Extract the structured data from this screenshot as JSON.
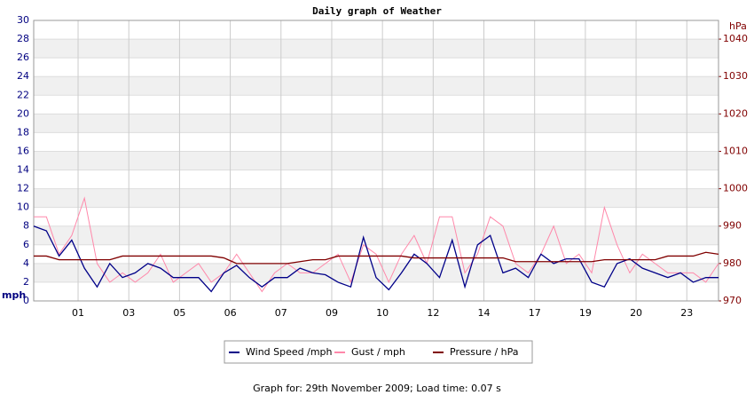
{
  "chart_data": {
    "type": "line",
    "title": "Daily graph of Weather",
    "ylabel": "mph",
    "y2label": "hPa",
    "caption": "Graph for: 29th November 2009; Load time: 0.07 s",
    "x": [
      0,
      0.25,
      0.5,
      0.75,
      1,
      1.25,
      1.5,
      1.75,
      2,
      2.25,
      2.5,
      2.75,
      3,
      3.25,
      3.5,
      3.75,
      4,
      4.25,
      4.5,
      4.75,
      5,
      5.25,
      5.5,
      5.75,
      6,
      6.25,
      6.5,
      6.75,
      7,
      7.25,
      7.5,
      7.75,
      8,
      8.25,
      8.5,
      8.75,
      9,
      9.25,
      9.5,
      9.75,
      10,
      10.25,
      10.5,
      10.75,
      11,
      11.25,
      11.5,
      11.75,
      12,
      12.25,
      12.5,
      12.75,
      13,
      13.25,
      13.5
    ],
    "xlim": [
      0,
      13.5
    ],
    "xticks": [
      {
        "value": 0.875,
        "label": "01"
      },
      {
        "value": 1.875,
        "label": "03"
      },
      {
        "value": 2.875,
        "label": "05"
      },
      {
        "value": 3.875,
        "label": "06"
      },
      {
        "value": 4.875,
        "label": "07"
      },
      {
        "value": 5.875,
        "label": "09"
      },
      {
        "value": 6.875,
        "label": "10"
      },
      {
        "value": 7.875,
        "label": "12"
      },
      {
        "value": 8.875,
        "label": "14"
      },
      {
        "value": 9.875,
        "label": "17"
      },
      {
        "value": 10.875,
        "label": "19"
      },
      {
        "value": 11.875,
        "label": "20"
      },
      {
        "value": 12.875,
        "label": "23"
      }
    ],
    "ylim": [
      0,
      30
    ],
    "yticks": [
      0,
      2,
      4,
      6,
      8,
      10,
      12,
      14,
      16,
      18,
      20,
      22,
      24,
      26,
      28,
      30
    ],
    "y2lim": [
      970,
      1045
    ],
    "y2ticks": [
      970,
      980,
      990,
      1000,
      1010,
      1020,
      1030,
      1040
    ],
    "grid": true,
    "series": [
      {
        "name": "Wind Speed /mph",
        "color": "#000088",
        "values": [
          8,
          7.5,
          4.8,
          6.5,
          3.5,
          1.5,
          4,
          2.5,
          3,
          4,
          3.5,
          2.5,
          2.5,
          2.5,
          1,
          3,
          3.8,
          2.5,
          1.5,
          2.5,
          2.5,
          3.5,
          3,
          2.8,
          2,
          1.5,
          6.8,
          2.5,
          1.2,
          3,
          5,
          4,
          2.5,
          6.5,
          1.5,
          6,
          7,
          3,
          3.5,
          2.5,
          5,
          4,
          4.5,
          4.5,
          2,
          1.5,
          4,
          4.5,
          3.5,
          3,
          2.5,
          3,
          2,
          2.5,
          2.5
        ]
      },
      {
        "name": "Gust / mph",
        "color": "#ff88aa",
        "values": [
          9,
          9,
          5,
          7,
          11,
          4,
          2,
          3,
          2,
          3,
          5,
          2,
          3,
          4,
          2,
          3,
          5,
          3,
          1,
          3,
          4,
          3,
          3,
          4,
          5,
          2,
          6,
          5,
          2,
          5,
          7,
          4,
          9,
          9,
          3,
          5,
          9,
          8,
          4,
          3,
          5,
          8,
          4,
          5,
          3,
          10,
          6,
          3,
          5,
          4,
          3,
          3,
          3,
          2,
          4
        ]
      },
      {
        "name": "Pressure / hPa",
        "color": "#800000",
        "axis": "y2",
        "values": [
          982,
          982,
          981,
          981,
          981,
          981,
          981,
          982,
          982,
          982,
          982,
          982,
          982,
          982,
          982,
          981.5,
          980,
          980,
          980,
          980,
          980,
          980.5,
          981,
          981,
          982,
          982,
          982,
          982,
          982,
          982,
          981.5,
          981.5,
          981.5,
          981.5,
          981.5,
          981.5,
          981.5,
          981.5,
          980.5,
          980.5,
          980.5,
          980.5,
          980.5,
          980.5,
          980.5,
          981,
          981,
          981,
          981,
          981,
          982,
          982,
          982,
          983,
          982.5
        ]
      }
    ]
  }
}
